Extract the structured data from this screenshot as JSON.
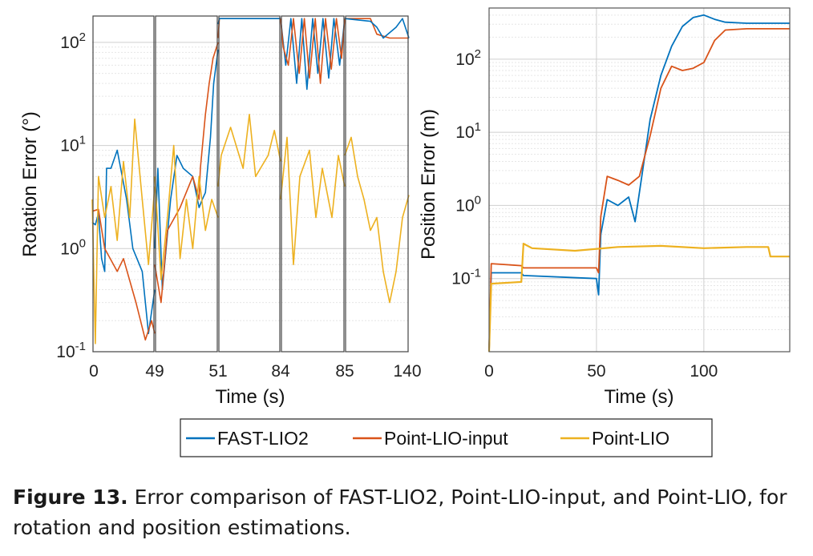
{
  "caption": {
    "label": "Figure 13.",
    "text": " Error comparison of FAST-LIO2, Point-LIO-input, and Point-LIO, for rotation and position estimations."
  },
  "colors": {
    "fast_lio2": "#0072BD",
    "point_lio_input": "#D95319",
    "point_lio": "#EDB120"
  },
  "chart_data": [
    {
      "type": "line",
      "yscale": "log",
      "xlabel": "Time (s)",
      "ylabel": "Rotation Error (°)",
      "ylim": [
        0.1,
        180
      ],
      "ytick_values": [
        0.1,
        1,
        10,
        100
      ],
      "ytick_labels": [
        {
          "base": "10",
          "exp": "-1"
        },
        {
          "base": "10",
          "exp": "0"
        },
        {
          "base": "10",
          "exp": "1"
        },
        {
          "base": "10",
          "exp": "2"
        }
      ],
      "xtick_labels": [
        "0",
        "49",
        "51",
        "84",
        "85",
        "140"
      ],
      "segments": [
        {
          "name": "FAST-LIO2",
          "points": [
            [
              0.0,
              1.8
            ],
            [
              0.05,
              1.7
            ],
            [
              0.1,
              2.2
            ],
            [
              0.15,
              0.8
            ],
            [
              0.2,
              0.6
            ],
            [
              0.23,
              6
            ],
            [
              0.3,
              6
            ],
            [
              0.4,
              9
            ],
            [
              0.55,
              3
            ],
            [
              0.65,
              1.0
            ],
            [
              0.8,
              0.6
            ],
            [
              0.9,
              0.15
            ],
            [
              1.0,
              0.4
            ]
          ]
        },
        {
          "name": "Point-LIO-input",
          "points": [
            [
              0.0,
              2.3
            ],
            [
              0.1,
              2.4
            ],
            [
              0.2,
              1.0
            ],
            [
              0.4,
              0.6
            ],
            [
              0.5,
              0.8
            ],
            [
              0.7,
              0.3
            ],
            [
              0.85,
              0.13
            ],
            [
              0.95,
              0.2
            ],
            [
              1.0,
              0.15
            ]
          ]
        },
        {
          "name": "Point-LIO",
          "points": [
            [
              0.0,
              3
            ],
            [
              0.05,
              0.12
            ],
            [
              0.1,
              5
            ],
            [
              0.2,
              2
            ],
            [
              0.3,
              4
            ],
            [
              0.4,
              1.2
            ],
            [
              0.5,
              7
            ],
            [
              0.6,
              2
            ],
            [
              0.68,
              18
            ],
            [
              0.8,
              3
            ],
            [
              0.9,
              0.7
            ],
            [
              1.0,
              4
            ]
          ]
        },
        {
          "name": "FAST-LIO2",
          "points": [
            [
              0.0,
              1.0
            ],
            [
              0.05,
              6
            ],
            [
              0.12,
              0.4
            ],
            [
              0.25,
              3
            ],
            [
              0.35,
              8
            ],
            [
              0.45,
              6
            ],
            [
              0.6,
              5
            ],
            [
              0.7,
              2.5
            ],
            [
              0.75,
              3
            ],
            [
              0.8,
              3.5
            ],
            [
              0.88,
              12
            ],
            [
              0.93,
              40
            ],
            [
              1.0,
              85
            ]
          ]
        },
        {
          "name": "Point-LIO-input",
          "points": [
            [
              0.0,
              0.7
            ],
            [
              0.1,
              0.3
            ],
            [
              0.2,
              1.5
            ],
            [
              0.4,
              2.5
            ],
            [
              0.6,
              5
            ],
            [
              0.7,
              3
            ],
            [
              0.72,
              6
            ],
            [
              0.8,
              20
            ],
            [
              0.86,
              40
            ],
            [
              0.92,
              70
            ],
            [
              1.0,
              100
            ]
          ]
        },
        {
          "name": "Point-LIO",
          "points": [
            [
              0.0,
              5
            ],
            [
              0.1,
              0.5
            ],
            [
              0.2,
              2
            ],
            [
              0.3,
              10
            ],
            [
              0.4,
              0.8
            ],
            [
              0.5,
              3
            ],
            [
              0.6,
              1
            ],
            [
              0.7,
              5
            ],
            [
              0.8,
              1.5
            ],
            [
              0.9,
              3
            ],
            [
              1.0,
              2
            ]
          ]
        },
        {
          "name": "Point-LIO-input",
          "points": [
            [
              0.0,
              110
            ],
            [
              0.02,
              170
            ],
            [
              0.98,
              170
            ],
            [
              1.0,
              170
            ]
          ]
        },
        {
          "name": "FAST-LIO2",
          "points": [
            [
              0.0,
              150
            ],
            [
              0.02,
              170
            ],
            [
              0.98,
              170
            ],
            [
              1.0,
              170
            ]
          ]
        },
        {
          "name": "Point-LIO",
          "points": [
            [
              0.0,
              4
            ],
            [
              0.05,
              8
            ],
            [
              0.2,
              15
            ],
            [
              0.4,
              6
            ],
            [
              0.5,
              20
            ],
            [
              0.6,
              5
            ],
            [
              0.8,
              8
            ],
            [
              0.9,
              14
            ],
            [
              1.0,
              7
            ]
          ]
        },
        {
          "name": "FAST-LIO2",
          "points": [
            [
              0.0,
              170
            ],
            [
              0.08,
              60
            ],
            [
              0.16,
              170
            ],
            [
              0.25,
              40
            ],
            [
              0.33,
              170
            ],
            [
              0.41,
              35
            ],
            [
              0.5,
              170
            ],
            [
              0.58,
              50
            ],
            [
              0.66,
              170
            ],
            [
              0.75,
              45
            ],
            [
              0.83,
              170
            ],
            [
              0.92,
              60
            ],
            [
              1.0,
              170
            ]
          ]
        },
        {
          "name": "Point-LIO-input",
          "points": [
            [
              0.0,
              170
            ],
            [
              0.04,
              90
            ],
            [
              0.12,
              60
            ],
            [
              0.2,
              170
            ],
            [
              0.29,
              50
            ],
            [
              0.37,
              170
            ],
            [
              0.45,
              45
            ],
            [
              0.54,
              170
            ],
            [
              0.62,
              40
            ],
            [
              0.7,
              170
            ],
            [
              0.79,
              55
            ],
            [
              0.87,
              170
            ],
            [
              0.95,
              70
            ],
            [
              1.0,
              170
            ]
          ]
        },
        {
          "name": "Point-LIO",
          "points": [
            [
              0.0,
              3
            ],
            [
              0.1,
              12
            ],
            [
              0.2,
              0.7
            ],
            [
              0.3,
              5
            ],
            [
              0.45,
              9
            ],
            [
              0.55,
              2
            ],
            [
              0.65,
              6
            ],
            [
              0.8,
              2
            ],
            [
              0.9,
              8
            ],
            [
              1.0,
              4
            ]
          ]
        },
        {
          "name": "Point-LIO-input",
          "points": [
            [
              0.0,
              170
            ],
            [
              0.4,
              170
            ],
            [
              0.5,
              120
            ],
            [
              0.7,
              110
            ],
            [
              1.0,
              110
            ]
          ]
        },
        {
          "name": "FAST-LIO2",
          "points": [
            [
              0.0,
              170
            ],
            [
              0.4,
              160
            ],
            [
              0.5,
              140
            ],
            [
              0.6,
              110
            ],
            [
              0.8,
              140
            ],
            [
              0.9,
              170
            ],
            [
              1.0,
              110
            ]
          ]
        },
        {
          "name": "Point-LIO",
          "points": [
            [
              0.0,
              8
            ],
            [
              0.1,
              12
            ],
            [
              0.2,
              5
            ],
            [
              0.3,
              3
            ],
            [
              0.4,
              1.5
            ],
            [
              0.5,
              2
            ],
            [
              0.6,
              0.6
            ],
            [
              0.7,
              0.3
            ],
            [
              0.8,
              0.6
            ],
            [
              0.9,
              2
            ],
            [
              1.0,
              3.3
            ]
          ]
        }
      ]
    },
    {
      "type": "line",
      "yscale": "log",
      "xlabel": "Time (s)",
      "ylabel": "Position Error (m)",
      "xlim": [
        0,
        140
      ],
      "ylim": [
        0.01,
        500
      ],
      "xticks": [
        0,
        50,
        100
      ],
      "xtick_labels": [
        "0",
        "50",
        "100"
      ],
      "ytick_values": [
        0.1,
        1,
        10,
        100
      ],
      "ytick_labels": [
        {
          "base": "10",
          "exp": "-1"
        },
        {
          "base": "10",
          "exp": "0"
        },
        {
          "base": "10",
          "exp": "1"
        },
        {
          "base": "10",
          "exp": "2"
        }
      ],
      "series": [
        {
          "name": "FAST-LIO2",
          "x": [
            0,
            1,
            15,
            16,
            50,
            51,
            52,
            55,
            60,
            65,
            68,
            70,
            75,
            80,
            85,
            90,
            95,
            100,
            105,
            110,
            120,
            130,
            140
          ],
          "y": [
            0.01,
            0.12,
            0.12,
            0.11,
            0.1,
            0.06,
            0.4,
            1.2,
            1.0,
            1.3,
            0.6,
            1.5,
            15,
            60,
            150,
            280,
            370,
            400,
            350,
            320,
            310,
            310,
            310
          ]
        },
        {
          "name": "Point-LIO-input",
          "x": [
            0,
            1,
            15,
            16,
            50,
            51,
            52,
            55,
            60,
            65,
            70,
            75,
            80,
            85,
            90,
            95,
            100,
            105,
            110,
            120,
            130,
            140
          ],
          "y": [
            0.01,
            0.16,
            0.15,
            0.14,
            0.14,
            0.12,
            0.7,
            2.5,
            2.2,
            1.9,
            2.5,
            9,
            40,
            80,
            70,
            75,
            90,
            180,
            250,
            260,
            260,
            260
          ]
        },
        {
          "name": "Point-LIO",
          "x": [
            0,
            1,
            15,
            16,
            20,
            40,
            60,
            80,
            100,
            120,
            130,
            131,
            140
          ],
          "y": [
            0.01,
            0.085,
            0.09,
            0.3,
            0.26,
            0.24,
            0.27,
            0.28,
            0.26,
            0.27,
            0.27,
            0.2,
            0.2
          ]
        }
      ]
    }
  ],
  "legend": {
    "entries": [
      {
        "label": "FAST-LIO2",
        "color_key": "fast_lio2"
      },
      {
        "label": "Point-LIO-input",
        "color_key": "point_lio_input"
      },
      {
        "label": "Point-LIO",
        "color_key": "point_lio"
      }
    ]
  }
}
